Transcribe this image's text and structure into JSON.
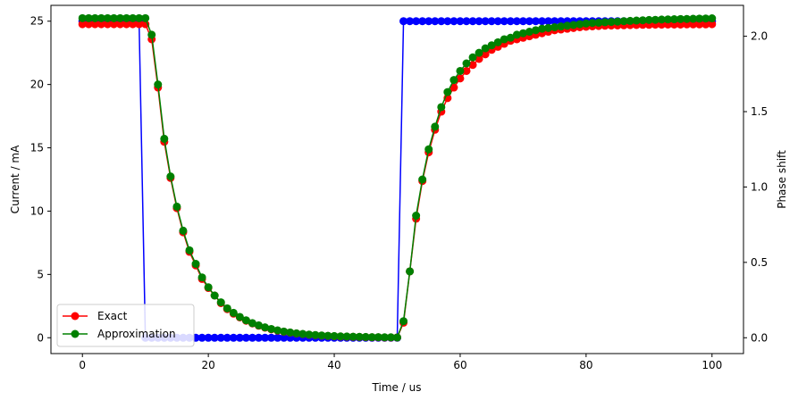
{
  "chart_data": {
    "type": "line",
    "title": "",
    "xlabel": "Time / us",
    "ylabel": "Current / mA",
    "y2label": "Phase shift",
    "xlim": [
      -5,
      105
    ],
    "ylim": [
      -1.25,
      26.25
    ],
    "y2lim": [
      -0.105,
      2.205
    ],
    "xticks": [
      0,
      20,
      40,
      60,
      80,
      100
    ],
    "yticks": [
      0,
      5,
      10,
      15,
      20,
      25
    ],
    "y2ticks": [
      0.0,
      0.5,
      1.0,
      1.5,
      2.0
    ],
    "xtick_labels": [
      "0",
      "20",
      "40",
      "60",
      "80",
      "100"
    ],
    "ytick_labels": [
      "0",
      "5",
      "10",
      "15",
      "20",
      "25"
    ],
    "y2tick_labels": [
      "0.0",
      "0.5",
      "1.0",
      "1.5",
      "2.0"
    ],
    "grid": false,
    "legend_position": "lower-left",
    "colors": {
      "exact": "#ff0000",
      "approx": "#008000",
      "current": "#0000ff"
    },
    "series": [
      {
        "name": "Exact",
        "axis": "right",
        "color": "#ff0000",
        "marker": "circle",
        "x": [
          0,
          1,
          2,
          3,
          4,
          5,
          6,
          7,
          8,
          9,
          10,
          11,
          12,
          13,
          14,
          15,
          16,
          17,
          18,
          19,
          20,
          21,
          22,
          23,
          24,
          25,
          26,
          27,
          28,
          29,
          30,
          31,
          32,
          33,
          34,
          35,
          36,
          37,
          38,
          39,
          40,
          41,
          42,
          43,
          44,
          45,
          46,
          47,
          48,
          49,
          50,
          51,
          52,
          53,
          54,
          55,
          56,
          57,
          58,
          59,
          60,
          61,
          62,
          63,
          64,
          65,
          66,
          67,
          68,
          69,
          70,
          71,
          72,
          73,
          74,
          75,
          76,
          77,
          78,
          79,
          80,
          81,
          82,
          83,
          84,
          85,
          86,
          87,
          88,
          89,
          90,
          91,
          92,
          93,
          94,
          95,
          96,
          97,
          98,
          99,
          100
        ],
        "y": [
          2.08,
          2.08,
          2.08,
          2.08,
          2.08,
          2.08,
          2.08,
          2.08,
          2.08,
          2.08,
          2.08,
          1.98,
          1.66,
          1.3,
          1.06,
          0.86,
          0.7,
          0.57,
          0.48,
          0.39,
          0.33,
          0.28,
          0.23,
          0.19,
          0.16,
          0.135,
          0.113,
          0.095,
          0.08,
          0.067,
          0.056,
          0.047,
          0.04,
          0.034,
          0.028,
          0.024,
          0.02,
          0.017,
          0.014,
          0.012,
          0.01,
          0.008,
          0.007,
          0.006,
          0.005,
          0.004,
          0.003,
          0.003,
          0.002,
          0.002,
          0.002,
          0.1,
          0.44,
          0.79,
          1.04,
          1.23,
          1.38,
          1.5,
          1.59,
          1.66,
          1.72,
          1.77,
          1.81,
          1.85,
          1.88,
          1.91,
          1.93,
          1.95,
          1.97,
          1.98,
          1.99,
          2.0,
          2.01,
          2.02,
          2.03,
          2.04,
          2.045,
          2.05,
          2.055,
          2.06,
          2.063,
          2.066,
          2.068,
          2.07,
          2.071,
          2.072,
          2.073,
          2.074,
          2.075,
          2.076,
          2.076,
          2.077,
          2.077,
          2.078,
          2.078,
          2.078,
          2.079,
          2.079,
          2.079,
          2.079,
          2.08
        ]
      },
      {
        "name": "Approximation",
        "axis": "right",
        "color": "#008000",
        "marker": "circle",
        "x": [
          0,
          1,
          2,
          3,
          4,
          5,
          6,
          7,
          8,
          9,
          10,
          11,
          12,
          13,
          14,
          15,
          16,
          17,
          18,
          19,
          20,
          21,
          22,
          23,
          24,
          25,
          26,
          27,
          28,
          29,
          30,
          31,
          32,
          33,
          34,
          35,
          36,
          37,
          38,
          39,
          40,
          41,
          42,
          43,
          44,
          45,
          46,
          47,
          48,
          49,
          50,
          51,
          52,
          53,
          54,
          55,
          56,
          57,
          58,
          59,
          60,
          61,
          62,
          63,
          64,
          65,
          66,
          67,
          68,
          69,
          70,
          71,
          72,
          73,
          74,
          75,
          76,
          77,
          78,
          79,
          80,
          81,
          82,
          83,
          84,
          85,
          86,
          87,
          88,
          89,
          90,
          91,
          92,
          93,
          94,
          95,
          96,
          97,
          98,
          99,
          100
        ],
        "y": [
          2.12,
          2.12,
          2.12,
          2.12,
          2.12,
          2.12,
          2.12,
          2.12,
          2.12,
          2.12,
          2.12,
          2.01,
          1.68,
          1.32,
          1.07,
          0.87,
          0.71,
          0.58,
          0.49,
          0.4,
          0.335,
          0.28,
          0.235,
          0.195,
          0.165,
          0.138,
          0.116,
          0.097,
          0.082,
          0.069,
          0.058,
          0.049,
          0.041,
          0.035,
          0.029,
          0.025,
          0.021,
          0.018,
          0.015,
          0.013,
          0.011,
          0.009,
          0.008,
          0.007,
          0.006,
          0.005,
          0.004,
          0.004,
          0.003,
          0.003,
          0.002,
          0.11,
          0.44,
          0.81,
          1.05,
          1.25,
          1.4,
          1.53,
          1.63,
          1.71,
          1.77,
          1.82,
          1.86,
          1.89,
          1.92,
          1.94,
          1.96,
          1.98,
          1.99,
          2.01,
          2.02,
          2.03,
          2.04,
          2.05,
          2.055,
          2.06,
          2.065,
          2.07,
          2.075,
          2.08,
          2.085,
          2.088,
          2.09,
          2.093,
          2.095,
          2.097,
          2.1,
          2.102,
          2.104,
          2.106,
          2.108,
          2.109,
          2.111,
          2.112,
          2.113,
          2.114,
          2.115,
          2.116,
          2.117,
          2.118,
          2.119
        ]
      },
      {
        "name": "",
        "axis": "left",
        "color": "#0000ff",
        "marker": "circle",
        "x": [
          0,
          1,
          2,
          3,
          4,
          5,
          6,
          7,
          8,
          9,
          10,
          11,
          12,
          13,
          14,
          15,
          16,
          17,
          18,
          19,
          20,
          21,
          22,
          23,
          24,
          25,
          26,
          27,
          28,
          29,
          30,
          31,
          32,
          33,
          34,
          35,
          36,
          37,
          38,
          39,
          40,
          41,
          42,
          43,
          44,
          45,
          46,
          47,
          48,
          49,
          50,
          51,
          52,
          53,
          54,
          55,
          56,
          57,
          58,
          59,
          60,
          61,
          62,
          63,
          64,
          65,
          66,
          67,
          68,
          69,
          70,
          71,
          72,
          73,
          74,
          75,
          76,
          77,
          78,
          79,
          80,
          81,
          82,
          83,
          84,
          85,
          86,
          87,
          88,
          89,
          90,
          91,
          92,
          93,
          94,
          95,
          96,
          97,
          98,
          99,
          100
        ],
        "y": [
          25,
          25,
          25,
          25,
          25,
          25,
          25,
          25,
          25,
          25,
          0,
          0,
          0,
          0,
          0,
          0,
          0,
          0,
          0,
          0,
          0,
          0,
          0,
          0,
          0,
          0,
          0,
          0,
          0,
          0,
          0,
          0,
          0,
          0,
          0,
          0,
          0,
          0,
          0,
          0,
          0,
          0,
          0,
          0,
          0,
          0,
          0,
          0,
          0,
          0,
          0,
          25,
          25,
          25,
          25,
          25,
          25,
          25,
          25,
          25,
          25,
          25,
          25,
          25,
          25,
          25,
          25,
          25,
          25,
          25,
          25,
          25,
          25,
          25,
          25,
          25,
          25,
          25,
          25,
          25,
          25,
          25,
          25,
          25,
          25,
          25,
          25,
          25,
          25,
          25,
          25,
          25,
          25,
          25,
          25,
          25,
          25,
          25,
          25,
          25,
          25
        ]
      }
    ]
  }
}
